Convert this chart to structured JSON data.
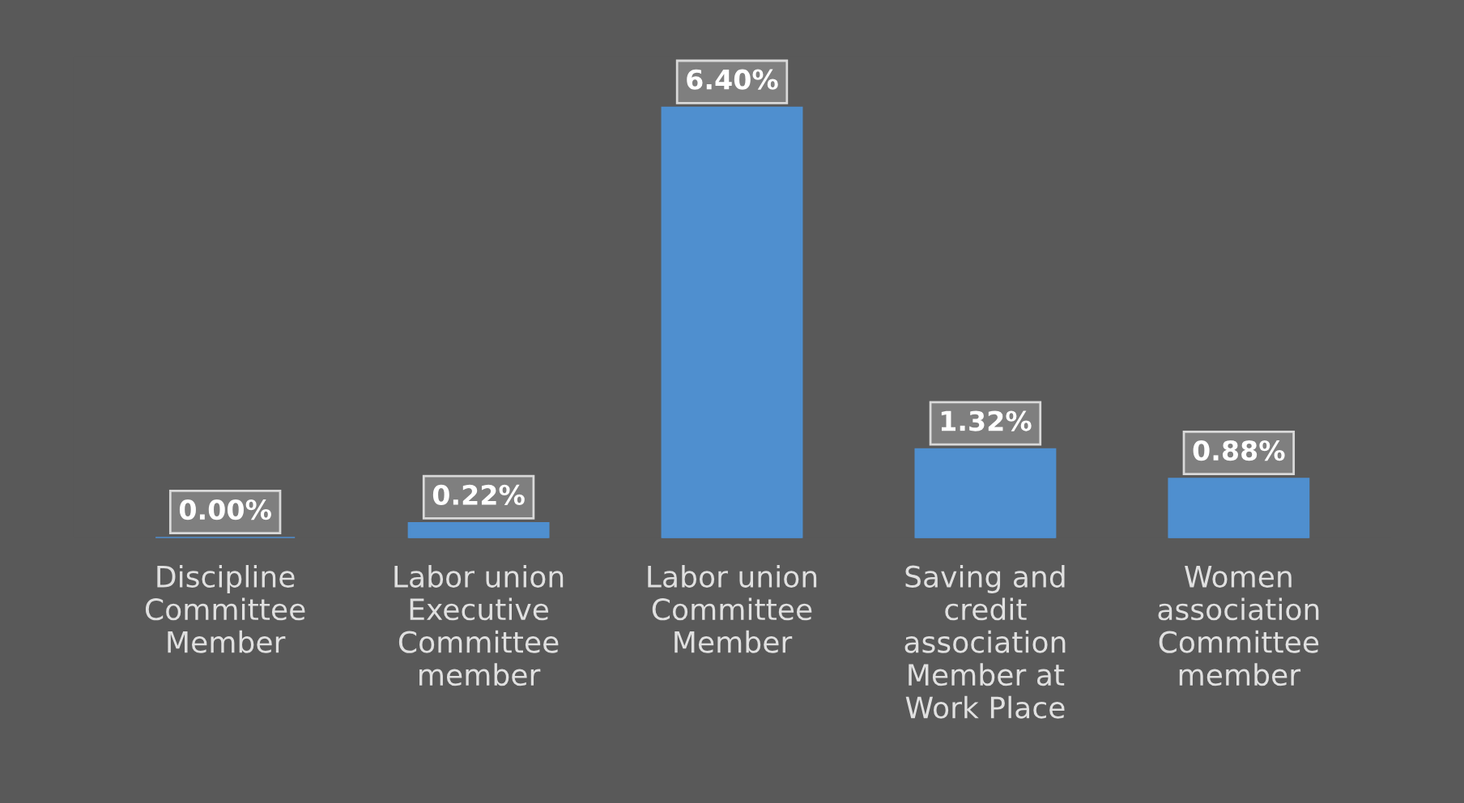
{
  "chart_data": {
    "type": "bar",
    "categories": [
      "Discipline\nCommittee\nMember",
      "Labor union\nExecutive\nCommittee\nmember",
      "Labor union\nCommittee\nMember",
      "Saving and\ncredit\nassociation\nMember at\nWork Place",
      "Women\nassociation\nCommittee\nmember"
    ],
    "values": [
      0.0,
      0.22,
      6.4,
      1.32,
      0.88
    ],
    "value_labels": [
      "0.00%",
      "0.22%",
      "6.40%",
      "1.32%",
      "0.88%"
    ],
    "color": "#4f8fcf",
    "grid": false
  }
}
